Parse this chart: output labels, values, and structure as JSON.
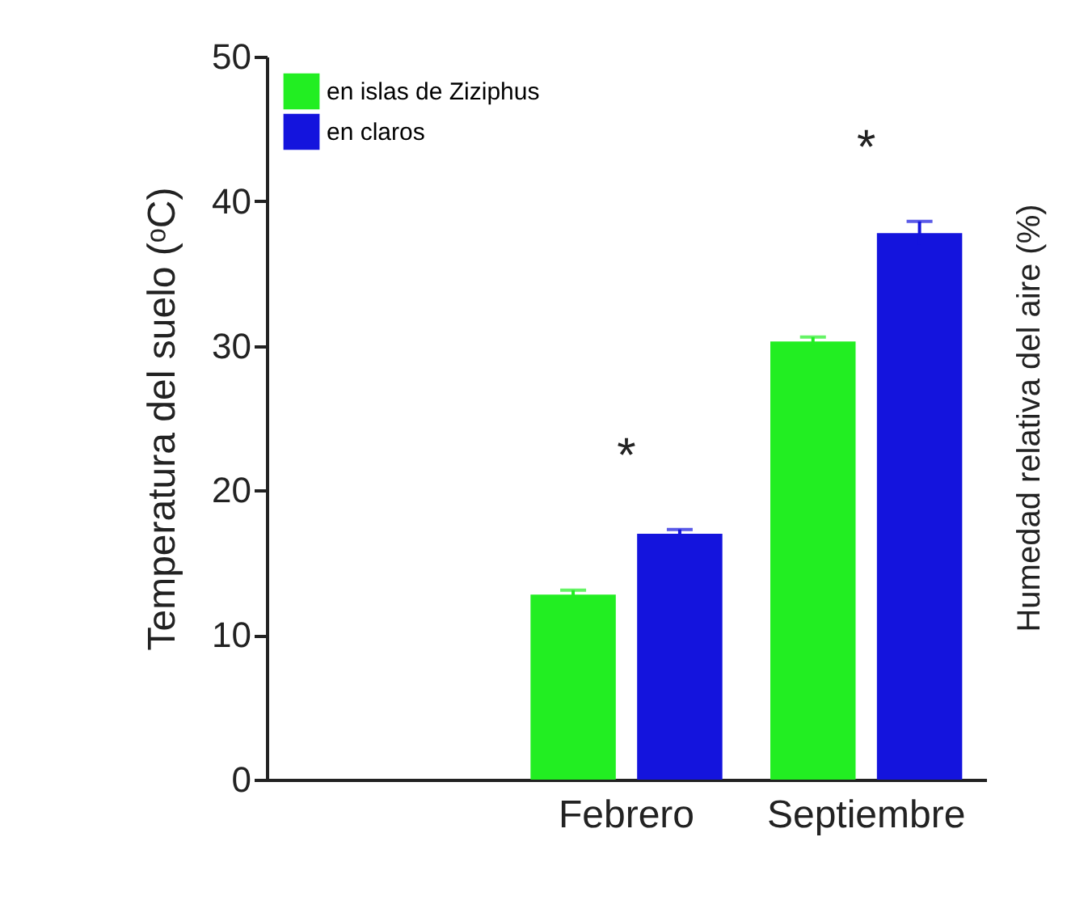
{
  "chart_data": {
    "type": "bar",
    "ylabel": "Temperatura del suelo (ᵒC)",
    "y2label": "Humedad relativa del aire (%)",
    "categories": [
      null,
      "Febrero",
      "Septiembre"
    ],
    "series": [
      {
        "name": "en islas de Ziziphus",
        "color": "#22ee22",
        "values": [
          null,
          12.8,
          30.3
        ],
        "errors": [
          null,
          0.3,
          0.3
        ]
      },
      {
        "name": "en claros",
        "color": "#1414dd",
        "values": [
          null,
          17.0,
          37.8
        ],
        "errors": [
          null,
          0.3,
          0.8
        ]
      }
    ],
    "ylim": [
      0,
      50
    ],
    "yticks": [
      0,
      10,
      20,
      30,
      40,
      50
    ],
    "legend": "top left",
    "annotations": [
      "*",
      "*"
    ]
  }
}
